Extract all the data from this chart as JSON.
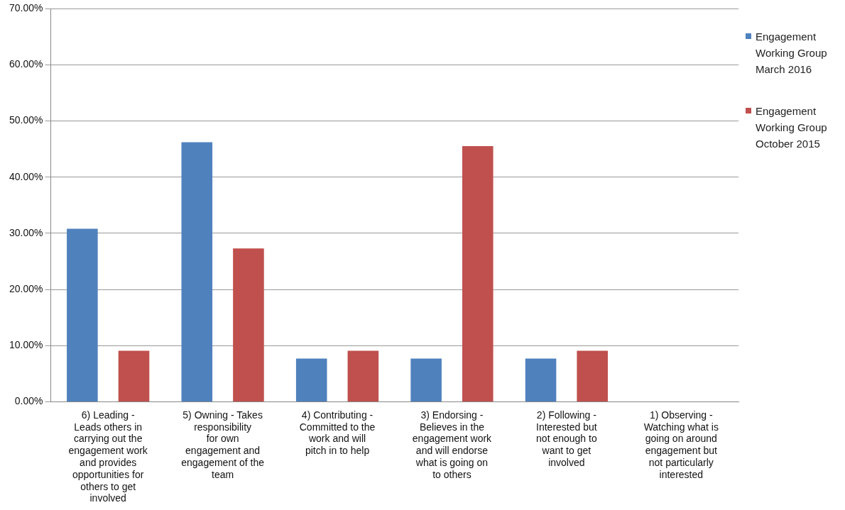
{
  "chart_data": {
    "type": "bar",
    "categories": [
      "6) Leading - Leads others in carrying out the engagement work and provides opportunities for others to get involved",
      "5) Owning - Takes responsibility for own engagement and engagement of the team",
      "4) Contributing - Committed to the work and will pitch in to help",
      "3) Endorsing - Believes in the engagement work and will endorse what is going on to others",
      "2) Following - Interested but not enough to want to get involved",
      "1) Observing - Watching what is going on around engagement but not particularly interested"
    ],
    "series": [
      {
        "name": "Engagement Working Group March 2016",
        "color": "#4f81bd",
        "values": [
          30.8,
          46.2,
          7.7,
          7.7,
          7.7,
          0
        ]
      },
      {
        "name": "Engagement Working Group October 2015",
        "color": "#c0504d",
        "values": [
          9.1,
          27.3,
          9.1,
          45.5,
          9.1,
          0
        ]
      }
    ],
    "ylim": [
      0,
      70
    ],
    "yticks": [
      {
        "value": 0,
        "label": "0.00%"
      },
      {
        "value": 10,
        "label": "10.00%"
      },
      {
        "value": 20,
        "label": "20.00%"
      },
      {
        "value": 30,
        "label": "30.00%"
      },
      {
        "value": 40,
        "label": "40.00%"
      },
      {
        "value": 50,
        "label": "50.00%"
      },
      {
        "value": 60,
        "label": "60.00%"
      },
      {
        "value": 70,
        "label": "70.00%"
      }
    ],
    "grid": "y",
    "legend": "right"
  }
}
